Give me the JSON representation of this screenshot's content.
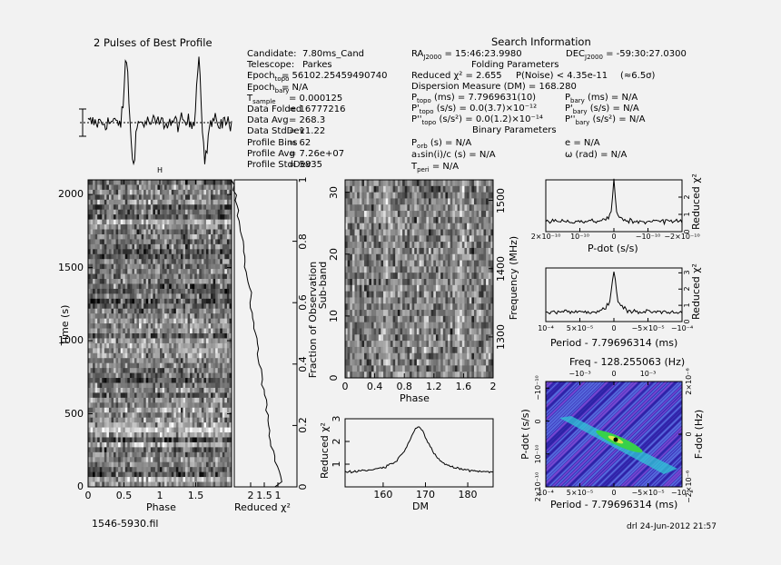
{
  "titles": {
    "pulses": "2 Pulses of Best Profile",
    "search": "Search Information",
    "folding": "Folding Parameters",
    "binary": "Binary Parameters"
  },
  "left_info": [
    {
      "k": "Candidate:",
      "v": "7.80ms_Cand"
    },
    {
      "k": "Telescope:",
      "v": "Parkes"
    },
    {
      "k": "Epoch",
      "sub": "topo",
      "v": "= 56102.25459490740"
    },
    {
      "k": "Epoch",
      "sub": "bary",
      "v": "= N/A"
    },
    {
      "k": "T",
      "sub": "sample",
      "v": "0.000125"
    },
    {
      "k": "Data Folded",
      "v": "16777216"
    },
    {
      "k": "Data Avg",
      "v": "268.3"
    },
    {
      "k": "Data StdDev",
      "v": "11.22"
    },
    {
      "k": "Profile Bins",
      "v": "62"
    },
    {
      "k": "Profile Avg",
      "v": "7.26e+07"
    },
    {
      "k": "Profile StdDev",
      "v": "5835"
    }
  ],
  "search_info": {
    "ra_label": "RA",
    "ra_sub": "J2000",
    "ra_val": "= 15:46:23.9980",
    "dec_label": "DEC",
    "dec_sub": "J2000",
    "dec_val": "= -59:30:27.0300",
    "redchi": "Reduced χ² = 2.655",
    "pnoise": "P(Noise) < 4.35e-11",
    "sigma": "(≈6.5σ)",
    "dm": "Dispersion Measure (DM) = 168.280",
    "ptopo": "(ms) = 7.7969631(10)",
    "pdtopo": "(s/s) = 0.0(3.7)×10⁻¹²",
    "pddtopo": "(s/s²) = 0.0(1.2)×10⁻¹⁴",
    "pbary": "(ms) = N/A",
    "pdbary": "(s/s) = N/A",
    "pddbary": "(s/s²) = N/A",
    "porb": "(s) = N/A",
    "a1sini": "a₁sin(i)/c (s) = N/A",
    "tperi": "= N/A",
    "ecc": "e = N/A",
    "omega": "ω (rad) = N/A"
  },
  "axes": {
    "time_ylabel": "Time (s)",
    "phase": "Phase",
    "redchi": "Reduced χ²",
    "frac": "Fraction of Observation",
    "subband": "Sub-band",
    "freq": "Frequency (MHz)",
    "dm": "DM",
    "pdot": "P-dot (s/s)",
    "period": "Period - 7.79696314 (ms)",
    "freqtop": "Freq - 128.255063 (Hz)",
    "fdot": "F-dot (Hz)"
  },
  "footer": {
    "file": "1546-5930.fil",
    "date": "drl 24-Jun-2012 21:57"
  },
  "ticks": {
    "time_y": [
      "0",
      "500",
      "1000",
      "1500",
      "2000"
    ],
    "phase_x": [
      "0",
      "0.5",
      "1",
      "1.5"
    ],
    "chi_x": [
      "2",
      "1.5",
      "1"
    ],
    "frac_y": [
      "0",
      "0.2",
      "0.4",
      "0.6",
      "0.8",
      "1"
    ],
    "sub_y": [
      "0",
      "10",
      "20",
      "30"
    ],
    "freq_y": [
      "1300",
      "1400",
      "1500"
    ],
    "phase2_x": [
      "0",
      "0.4",
      "0.8",
      "1.2",
      "1.6",
      "2"
    ],
    "dm_x": [
      "160",
      "170",
      "180"
    ],
    "dm_y": [
      "1",
      "2",
      "3"
    ],
    "pd_x": [
      "2×10⁻¹⁰",
      "10⁻¹⁰",
      "0",
      "−10⁻¹⁰",
      "−2×10⁻¹⁰"
    ],
    "pd_y": [
      "0",
      "1",
      "2"
    ],
    "per_x": [
      "10⁻⁴",
      "5×10⁻⁵",
      "0",
      "−5×10⁻⁵",
      "−10⁻⁴"
    ],
    "per_y": [
      "0",
      "1",
      "2",
      "3"
    ],
    "fq_x": [
      "−10⁻³",
      "0",
      "10⁻³"
    ],
    "pp_y": [
      "2×10⁻¹⁰",
      "10⁻¹⁰",
      "0",
      "−10⁻¹⁰"
    ],
    "fd_y": [
      "−2×10⁻⁶",
      "0",
      "2×10⁻⁶"
    ]
  },
  "chart_data": [
    {
      "type": "line",
      "name": "pulse-profile",
      "title": "2 Pulses of Best Profile",
      "peaks_at_phase": [
        0.55,
        1.55
      ]
    },
    {
      "type": "heatmap",
      "name": "time-vs-phase",
      "xlabel": "Phase",
      "ylabel": "Time (s)",
      "xlim": [
        0,
        2
      ],
      "ylim": [
        0,
        2100
      ],
      "rows": 62
    },
    {
      "type": "line",
      "name": "redchi-vs-time",
      "xlabel": "Reduced χ²",
      "ylabel": "Fraction of Observation",
      "xlim": [
        2.6,
        0.3
      ],
      "ylim": [
        0,
        1
      ]
    },
    {
      "type": "heatmap",
      "name": "subband-vs-phase",
      "xlabel": "Phase",
      "ylabel": "Sub-band",
      "xlim": [
        0,
        2
      ],
      "ylim": [
        0,
        32
      ],
      "freq_range_mhz": [
        1240,
        1530
      ]
    },
    {
      "type": "line",
      "name": "dm-curve",
      "xlabel": "DM",
      "ylabel": "Reduced χ²",
      "xlim": [
        151,
        186
      ],
      "ylim": [
        0,
        3
      ],
      "peak": {
        "x": 168.28,
        "y": 2.655
      }
    },
    {
      "type": "line",
      "name": "pdot-curve",
      "xlabel": "P-dot (s/s)",
      "ylabel": "Reduced χ²",
      "peak_at": 0
    },
    {
      "type": "line",
      "name": "period-curve",
      "xlabel": "Period - 7.79696314 (ms)",
      "ylabel": "Reduced χ²",
      "peak_at": 0
    },
    {
      "type": "heatmap",
      "name": "p-pdot-plane",
      "xlabel": "Period - 7.79696314 (ms)",
      "ylabel": "P-dot (s/s)"
    }
  ]
}
